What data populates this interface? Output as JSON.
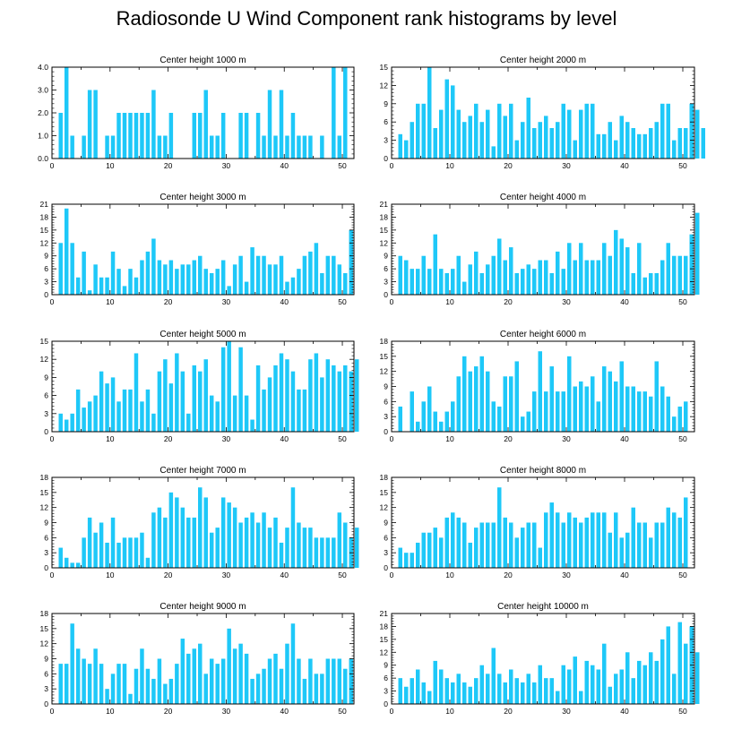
{
  "title": "Radiosonde U Wind Component rank histograms by level",
  "colors": {
    "bar": "#1ec8f8",
    "axis": "#000000",
    "background": "#ffffff"
  },
  "chart_data": [
    {
      "type": "bar",
      "title": "Center height 1000 m",
      "xlim": [
        0,
        52
      ],
      "ylim": [
        0,
        4
      ],
      "xticks": [
        0,
        10,
        20,
        30,
        40,
        50
      ],
      "yticks": [
        "0.0",
        "1.0",
        "2.0",
        "3.0",
        "4.0"
      ],
      "ytick_values": [
        0,
        1,
        2,
        3,
        4
      ],
      "values": [
        0,
        2,
        4,
        1,
        0,
        1,
        3,
        3,
        0,
        1,
        1,
        2,
        2,
        2,
        2,
        2,
        2,
        3,
        1,
        1,
        2,
        0,
        0,
        0,
        2,
        2,
        3,
        1,
        1,
        2,
        0,
        0,
        2,
        2,
        0,
        2,
        1,
        3,
        1,
        3,
        1,
        2,
        1,
        1,
        1,
        0,
        1,
        0,
        4,
        1,
        4,
        0
      ]
    },
    {
      "type": "bar",
      "title": "Center height 2000 m",
      "xlim": [
        0,
        52
      ],
      "ylim": [
        0,
        15
      ],
      "xticks": [
        0,
        10,
        20,
        30,
        40,
        50
      ],
      "yticks": [
        "0",
        "3",
        "6",
        "9",
        "12",
        "15"
      ],
      "ytick_values": [
        0,
        3,
        6,
        9,
        12,
        15
      ],
      "values": [
        0,
        4,
        3,
        6,
        9,
        9,
        15,
        5,
        8,
        13,
        12,
        8,
        6,
        7,
        9,
        6,
        8,
        2,
        9,
        7,
        9,
        3,
        6,
        10,
        5,
        6,
        7,
        5,
        6,
        9,
        8,
        3,
        8,
        9,
        9,
        4,
        4,
        6,
        3,
        7,
        6,
        5,
        4,
        4,
        5,
        6,
        9,
        9,
        3,
        5,
        5,
        9,
        8,
        5
      ]
    },
    {
      "type": "bar",
      "title": "Center height 3000 m",
      "xlim": [
        0,
        52
      ],
      "ylim": [
        0,
        21
      ],
      "xticks": [
        0,
        10,
        20,
        30,
        40,
        50
      ],
      "yticks": [
        "0",
        "3",
        "6",
        "9",
        "12",
        "15",
        "18",
        "21"
      ],
      "ytick_values": [
        0,
        3,
        6,
        9,
        12,
        15,
        18,
        21
      ],
      "values": [
        0,
        12,
        20,
        12,
        4,
        10,
        1,
        7,
        4,
        4,
        10,
        6,
        2,
        6,
        4,
        8,
        10,
        13,
        8,
        7,
        8,
        6,
        7,
        7,
        8,
        9,
        6,
        5,
        6,
        8,
        2,
        7,
        9,
        3,
        11,
        9,
        9,
        7,
        7,
        9,
        3,
        4,
        6,
        9,
        10,
        12,
        5,
        9,
        9,
        7,
        5,
        15
      ]
    },
    {
      "type": "bar",
      "title": "Center height 4000 m",
      "xlim": [
        0,
        52
      ],
      "ylim": [
        0,
        21
      ],
      "xticks": [
        0,
        10,
        20,
        30,
        40,
        50
      ],
      "yticks": [
        "0",
        "3",
        "6",
        "9",
        "12",
        "15",
        "18",
        "21"
      ],
      "ytick_values": [
        0,
        3,
        6,
        9,
        12,
        15,
        18,
        21
      ],
      "values": [
        0,
        9,
        8,
        6,
        6,
        9,
        6,
        14,
        6,
        5,
        6,
        9,
        3,
        7,
        10,
        5,
        7,
        9,
        13,
        8,
        11,
        5,
        6,
        7,
        6,
        8,
        8,
        5,
        10,
        6,
        12,
        8,
        12,
        8,
        8,
        8,
        12,
        9,
        15,
        13,
        11,
        5,
        12,
        4,
        5,
        5,
        8,
        12,
        9,
        9,
        9,
        14,
        19
      ]
    },
    {
      "type": "bar",
      "title": "Center height 5000 m",
      "xlim": [
        0,
        52
      ],
      "ylim": [
        0,
        15
      ],
      "xticks": [
        0,
        10,
        20,
        30,
        40,
        50
      ],
      "yticks": [
        "0",
        "3",
        "6",
        "9",
        "12",
        "15"
      ],
      "ytick_values": [
        0,
        3,
        6,
        9,
        12,
        15
      ],
      "values": [
        0,
        3,
        2,
        3,
        7,
        4,
        5,
        6,
        10,
        8,
        9,
        5,
        7,
        7,
        13,
        5,
        7,
        3,
        10,
        12,
        8,
        13,
        10,
        3,
        11,
        10,
        12,
        6,
        5,
        14,
        15,
        6,
        14,
        6,
        2,
        11,
        7,
        9,
        11,
        13,
        12,
        10,
        7,
        7,
        12,
        13,
        9,
        12,
        11,
        10,
        11,
        10,
        12
      ]
    },
    {
      "type": "bar",
      "title": "Center height 6000 m",
      "xlim": [
        0,
        52
      ],
      "ylim": [
        0,
        18
      ],
      "xticks": [
        0,
        10,
        20,
        30,
        40,
        50
      ],
      "yticks": [
        "0",
        "3",
        "6",
        "9",
        "12",
        "15",
        "18"
      ],
      "ytick_values": [
        0,
        3,
        6,
        9,
        12,
        15,
        18
      ],
      "values": [
        0,
        5,
        0,
        8,
        2,
        6,
        9,
        4,
        2,
        4,
        6,
        11,
        15,
        12,
        13,
        15,
        12,
        6,
        5,
        11,
        11,
        14,
        3,
        4,
        8,
        16,
        8,
        13,
        8,
        8,
        15,
        9,
        10,
        9,
        11,
        6,
        13,
        12,
        10,
        14,
        9,
        9,
        8,
        8,
        7,
        14,
        9,
        7,
        3,
        5,
        6
      ]
    },
    {
      "type": "bar",
      "title": "Center height 7000 m",
      "xlim": [
        0,
        52
      ],
      "ylim": [
        0,
        18
      ],
      "xticks": [
        0,
        10,
        20,
        30,
        40,
        50
      ],
      "yticks": [
        "0",
        "3",
        "6",
        "9",
        "12",
        "15",
        "18"
      ],
      "ytick_values": [
        0,
        3,
        6,
        9,
        12,
        15,
        18
      ],
      "values": [
        0,
        4,
        2,
        1,
        1,
        6,
        10,
        7,
        9,
        5,
        10,
        5,
        6,
        6,
        6,
        7,
        2,
        11,
        12,
        10,
        15,
        14,
        12,
        10,
        10,
        16,
        14,
        7,
        8,
        14,
        13,
        12,
        9,
        10,
        11,
        9,
        11,
        8,
        10,
        5,
        8,
        16,
        9,
        8,
        8,
        6,
        6,
        6,
        6,
        11,
        9,
        6,
        8
      ]
    },
    {
      "type": "bar",
      "title": "Center height 8000 m",
      "xlim": [
        0,
        52
      ],
      "ylim": [
        0,
        18
      ],
      "xticks": [
        0,
        10,
        20,
        30,
        40,
        50
      ],
      "yticks": [
        "0",
        "3",
        "6",
        "9",
        "12",
        "15",
        "18"
      ],
      "ytick_values": [
        0,
        3,
        6,
        9,
        12,
        15,
        18
      ],
      "values": [
        0,
        4,
        3,
        3,
        5,
        7,
        7,
        8,
        6,
        10,
        11,
        10,
        9,
        5,
        8,
        9,
        9,
        9,
        16,
        10,
        9,
        6,
        8,
        9,
        9,
        4,
        11,
        13,
        11,
        9,
        11,
        10,
        9,
        10,
        11,
        11,
        11,
        7,
        11,
        6,
        7,
        12,
        9,
        9,
        6,
        9,
        9,
        12,
        11,
        10,
        14
      ]
    },
    {
      "type": "bar",
      "title": "Center height 9000 m",
      "xlim": [
        0,
        52
      ],
      "ylim": [
        0,
        18
      ],
      "xticks": [
        0,
        10,
        20,
        30,
        40,
        50
      ],
      "yticks": [
        "0",
        "3",
        "6",
        "9",
        "12",
        "15",
        "18"
      ],
      "ytick_values": [
        0,
        3,
        6,
        9,
        12,
        15,
        18
      ],
      "values": [
        0,
        8,
        8,
        16,
        11,
        9,
        8,
        11,
        8,
        3,
        6,
        8,
        8,
        2,
        7,
        11,
        7,
        5,
        9,
        4,
        5,
        8,
        13,
        10,
        11,
        12,
        6,
        9,
        8,
        9,
        15,
        11,
        12,
        10,
        5,
        6,
        7,
        9,
        10,
        7,
        12,
        16,
        9,
        5,
        9,
        6,
        6,
        9,
        9,
        9,
        7,
        9
      ]
    },
    {
      "type": "bar",
      "title": "Center height 10000 m",
      "xlim": [
        0,
        52
      ],
      "ylim": [
        0,
        21
      ],
      "xticks": [
        0,
        10,
        20,
        30,
        40,
        50
      ],
      "yticks": [
        "0",
        "3",
        "6",
        "9",
        "12",
        "15",
        "18",
        "21"
      ],
      "ytick_values": [
        0,
        3,
        6,
        9,
        12,
        15,
        18,
        21
      ],
      "values": [
        0,
        6,
        4,
        6,
        8,
        5,
        3,
        10,
        8,
        6,
        5,
        7,
        5,
        4,
        6,
        9,
        7,
        13,
        7,
        5,
        8,
        6,
        5,
        7,
        5,
        9,
        6,
        6,
        3,
        9,
        8,
        11,
        3,
        10,
        9,
        8,
        14,
        4,
        7,
        8,
        12,
        6,
        10,
        9,
        12,
        10,
        15,
        18,
        7,
        19,
        14,
        18,
        12
      ]
    }
  ]
}
